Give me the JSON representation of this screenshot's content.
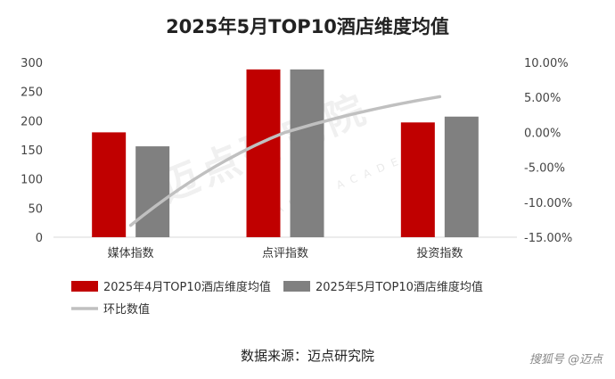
{
  "title": "2025年5月TOP10酒店维度均值",
  "source_text": "数据来源：迈点研究院",
  "brand_text": "搜狐号 @迈点",
  "watermark": {
    "main": "迈点研究院",
    "sub": "MEADIN ACADEMY"
  },
  "chart_data": {
    "type": "bar",
    "categories": [
      "媒体指数",
      "点评指数",
      "投资指数"
    ],
    "series": [
      {
        "name": "2025年4月TOP10酒店维度均值",
        "type": "bar",
        "color": "#c00000",
        "values": [
          180,
          288,
          197
        ]
      },
      {
        "name": "2025年5月TOP10酒店维度均值",
        "type": "bar",
        "color": "#808080",
        "values": [
          156,
          288,
          207
        ]
      },
      {
        "name": "环比数值",
        "type": "line",
        "color": "#c0c0c0",
        "axis": "right",
        "values": [
          -13.3,
          0.0,
          5.1
        ]
      }
    ],
    "ylim": [
      0,
      300
    ],
    "yticks": [
      "0",
      "50",
      "100",
      "150",
      "200",
      "250",
      "300"
    ],
    "y2lim": [
      -15,
      10
    ],
    "y2ticks": [
      "-15.00%",
      "-10.00%",
      "-5.00%",
      "0.00%",
      "5.00%",
      "10.00%"
    ],
    "legend_placement": "bottom",
    "grid": false
  }
}
